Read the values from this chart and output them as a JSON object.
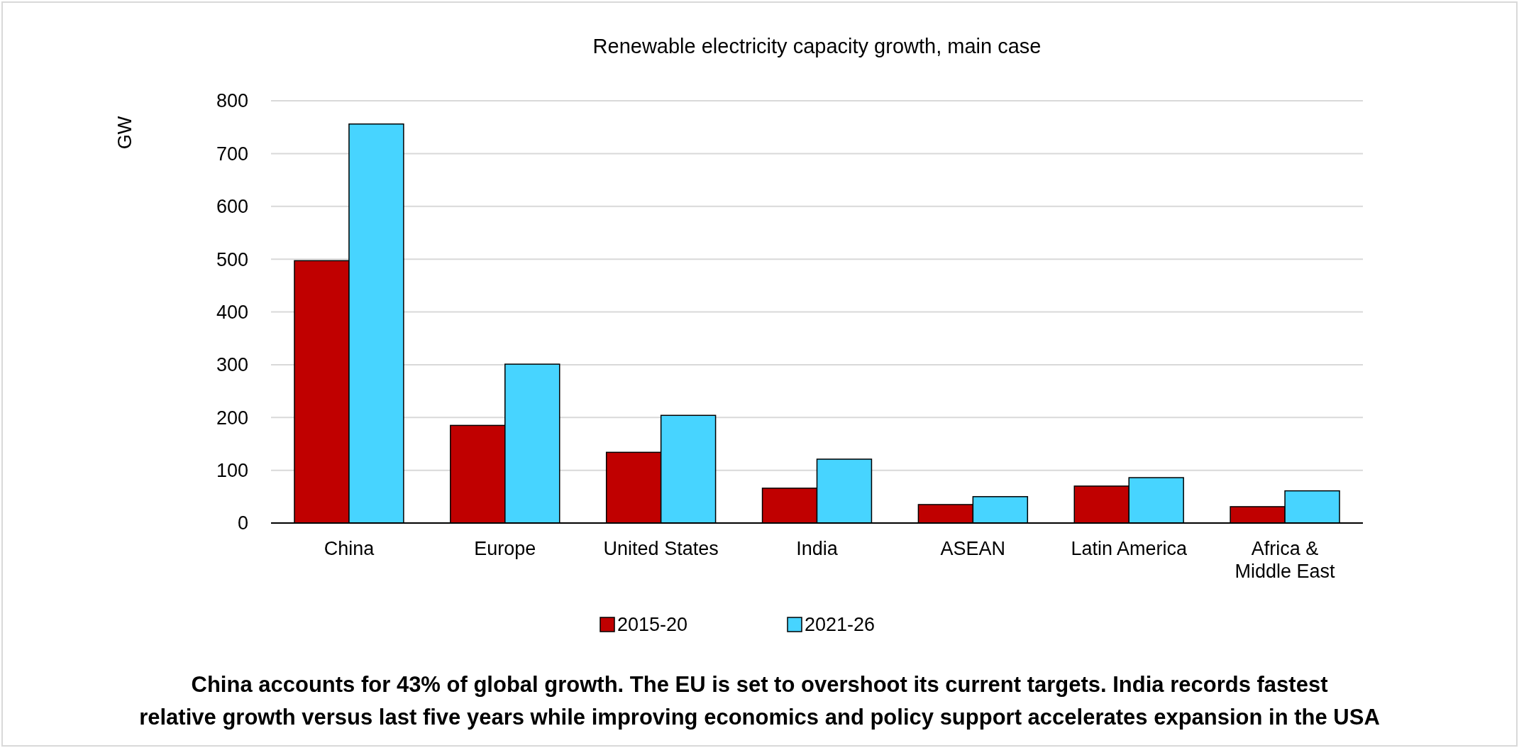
{
  "chart_data": {
    "type": "bar",
    "title": "Renewable electricity capacity growth, main case",
    "ylabel": "GW",
    "categories": [
      "China",
      "Europe",
      "United States",
      "India",
      "ASEAN",
      "Latin America",
      "Africa & Middle East"
    ],
    "series": [
      {
        "name": "2015-20",
        "color": "#c00000",
        "values": [
          497,
          185,
          134,
          66,
          35,
          70,
          31
        ]
      },
      {
        "name": "2021-26",
        "color": "#47d4ff",
        "values": [
          756,
          301,
          204,
          121,
          50,
          86,
          61
        ]
      }
    ],
    "ylim": [
      0,
      800
    ],
    "yticks": [
      0,
      100,
      200,
      300,
      400,
      500,
      600,
      700,
      800
    ],
    "grid": "y",
    "legend": "bottom",
    "annotations": [
      "China accounts for 43% of global growth. The EU is set to overshoot its current targets. India records fastest relative growth versus last five years while improving economics and policy support accelerates expansion in the USA"
    ]
  }
}
